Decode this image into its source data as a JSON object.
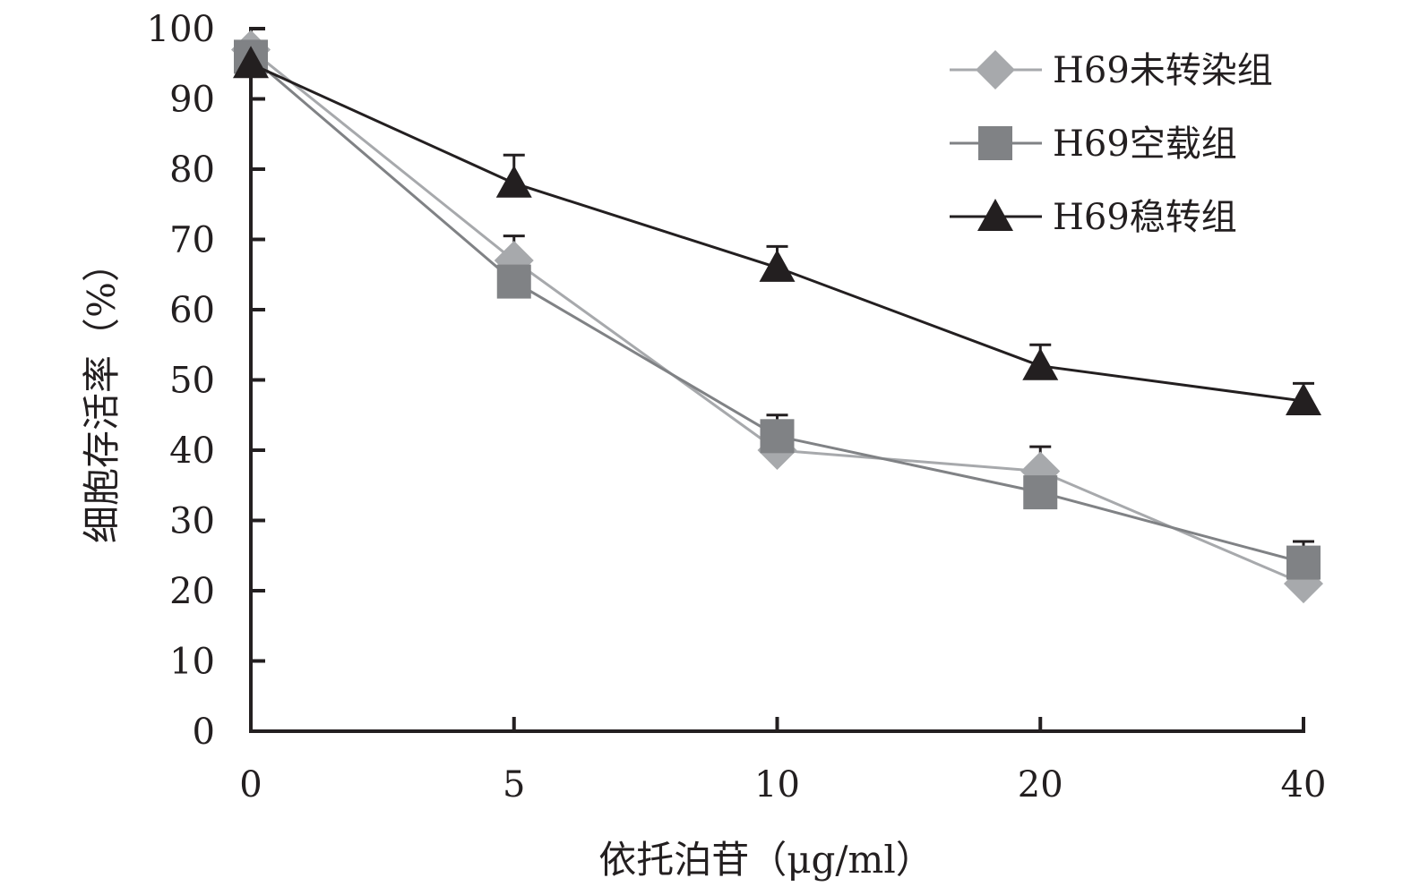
{
  "chart_data": {
    "type": "line",
    "title": "",
    "xlabel": "依托泊苷（μg/ml）",
    "ylabel": "细胞存活率（%）",
    "categories": [
      "0",
      "5",
      "10",
      "20",
      "40"
    ],
    "ylim": [
      0,
      100
    ],
    "yticks": [
      "0",
      "10",
      "20",
      "30",
      "40",
      "50",
      "60",
      "70",
      "80",
      "90",
      "100"
    ],
    "legend_position": "top-right",
    "grid": false,
    "series": [
      {
        "name": "H69未转染组",
        "values": [
          97,
          67,
          40,
          37,
          21
        ],
        "errors": [
          0,
          3.5,
          0,
          3.5,
          0
        ],
        "color": "#a7a9ac",
        "marker": "diamond"
      },
      {
        "name": "H69空载组",
        "values": [
          96,
          64,
          42,
          34,
          24
        ],
        "errors": [
          0,
          0,
          3,
          0,
          3
        ],
        "color": "#808285",
        "marker": "square"
      },
      {
        "name": "H69稳转组",
        "values": [
          95,
          78,
          66,
          52,
          47
        ],
        "errors": [
          0,
          4,
          3,
          3,
          2.5
        ],
        "color": "#231f20",
        "marker": "triangle"
      }
    ]
  }
}
